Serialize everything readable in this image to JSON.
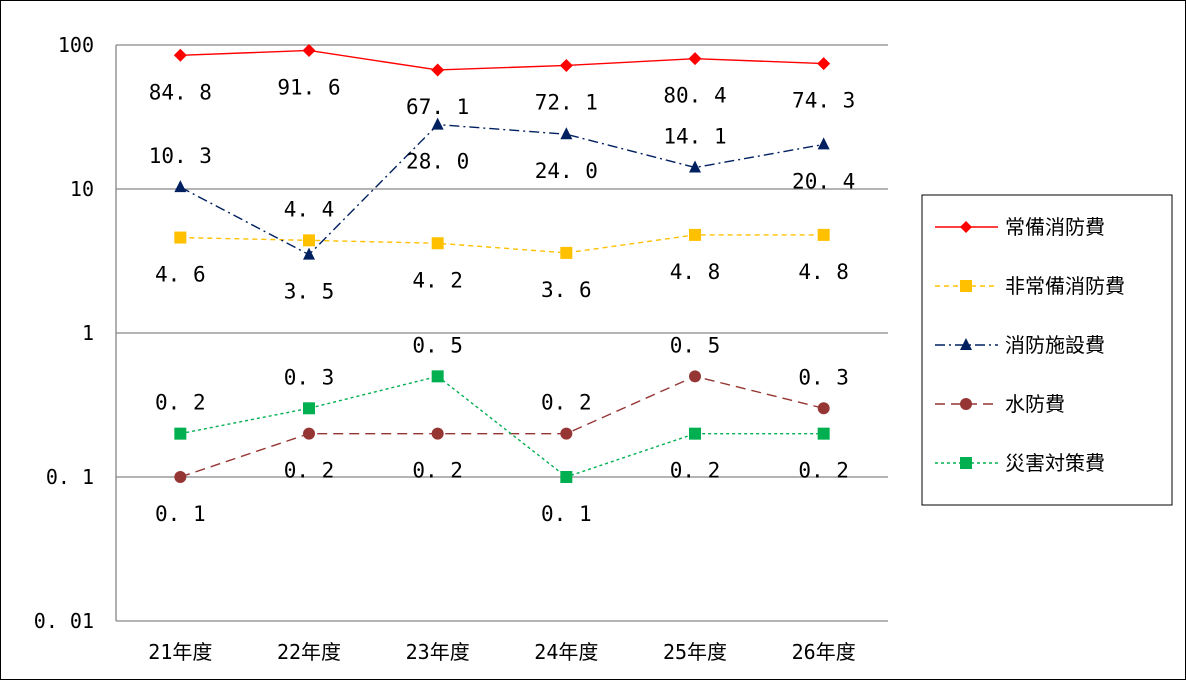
{
  "chart_data": {
    "type": "line",
    "title": "",
    "xlabel": "",
    "ylabel": "",
    "yscale": "log",
    "ylim": [
      0.01,
      100
    ],
    "yticks": [
      "100",
      "10",
      "1",
      "0.1",
      "0.01"
    ],
    "grid": true,
    "legend_position": "right",
    "categories": [
      "21年度",
      "22年度",
      "23年度",
      "24年度",
      "25年度",
      "26年度"
    ],
    "series": [
      {
        "name": "常備消防費",
        "values": [
          84.8,
          91.6,
          67.1,
          72.1,
          80.4,
          74.3
        ],
        "labels": [
          "84.8",
          "91.6",
          "67.1",
          "72.1",
          "80.4",
          "74.3"
        ],
        "color": "#ff0000",
        "marker": "diamond",
        "dash": "solid"
      },
      {
        "name": "非常備消防費",
        "values": [
          4.6,
          4.4,
          4.2,
          3.6,
          4.8,
          4.8
        ],
        "labels": [
          "4.6",
          "4.4",
          "4.2",
          "3.6",
          "4.8",
          "4.8"
        ],
        "color": "#ffc000",
        "marker": "square",
        "dash": "dashed"
      },
      {
        "name": "消防施設費",
        "values": [
          10.3,
          3.5,
          28.0,
          24.0,
          14.1,
          20.4
        ],
        "labels": [
          "10.3",
          "3.5",
          "28.0",
          "24.0",
          "14.1",
          "20.4"
        ],
        "color": "#002060",
        "marker": "triangle",
        "dash": "dashdot"
      },
      {
        "name": "水防費",
        "values": [
          0.1,
          0.2,
          0.2,
          0.2,
          0.5,
          0.3
        ],
        "labels": [
          "0.1",
          "0.2",
          "0.2",
          "0.2",
          "0.5",
          "0.3"
        ],
        "color": "#963634",
        "marker": "circle",
        "dash": "longdash"
      },
      {
        "name": "災害対策費",
        "values": [
          0.2,
          0.3,
          0.5,
          0.1,
          0.2,
          0.2
        ],
        "labels": [
          "0.2",
          "0.3",
          "0.5",
          "0.1",
          "0.2",
          "0.2"
        ],
        "color": "#00b050",
        "marker": "square",
        "dash": "dotted"
      }
    ]
  }
}
